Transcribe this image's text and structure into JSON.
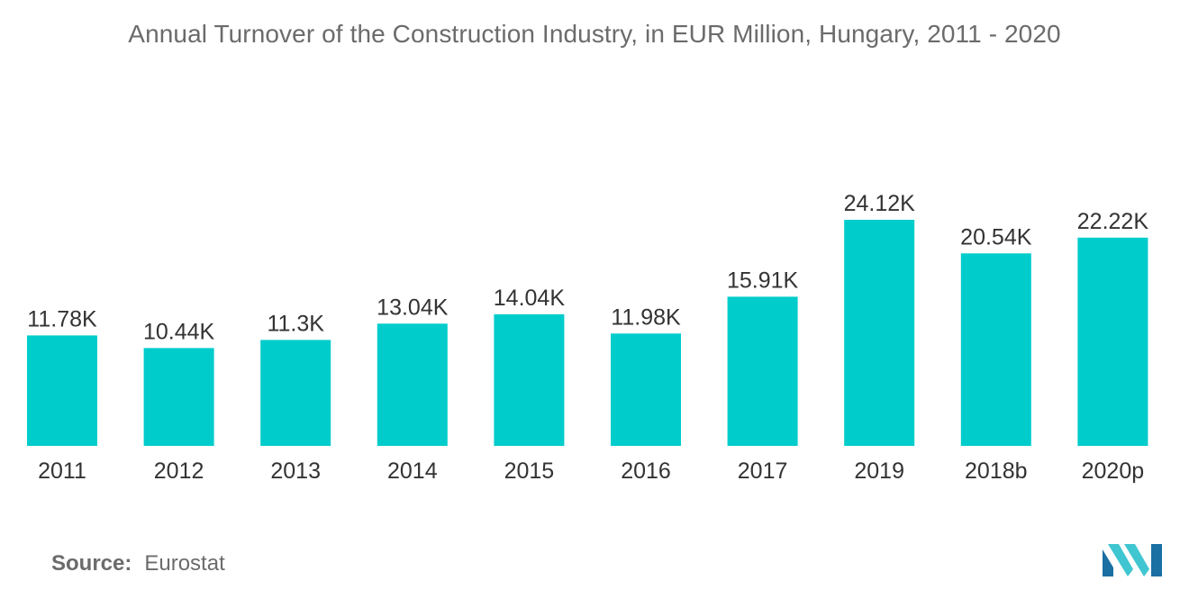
{
  "chart_data": {
    "type": "bar",
    "title": "Annual Turnover of the Construction Industry, in EUR Million, Hungary, 2011 - 2020",
    "categories": [
      "2011",
      "2012",
      "2013",
      "2014",
      "2015",
      "2016",
      "2017",
      "2019",
      "2018b",
      "2020p"
    ],
    "values": [
      11780,
      10440,
      11300,
      13040,
      14040,
      11980,
      15910,
      24120,
      20540,
      22220
    ],
    "data_labels": [
      "11.78K",
      "10.44K",
      "11.3K",
      "13.04K",
      "14.04K",
      "11.98K",
      "15.91K",
      "24.12K",
      "20.54K",
      "22.22K"
    ],
    "ylim": [
      0,
      30000
    ],
    "grid": false,
    "legend": "none",
    "bar_color": "#00cccc"
  },
  "source": {
    "label": "Source:",
    "value": "Eurostat"
  },
  "logo": {
    "icon": "mordor-intelligence-logo-icon",
    "colors": [
      "#1a6fa3",
      "#3fc6d0"
    ]
  }
}
